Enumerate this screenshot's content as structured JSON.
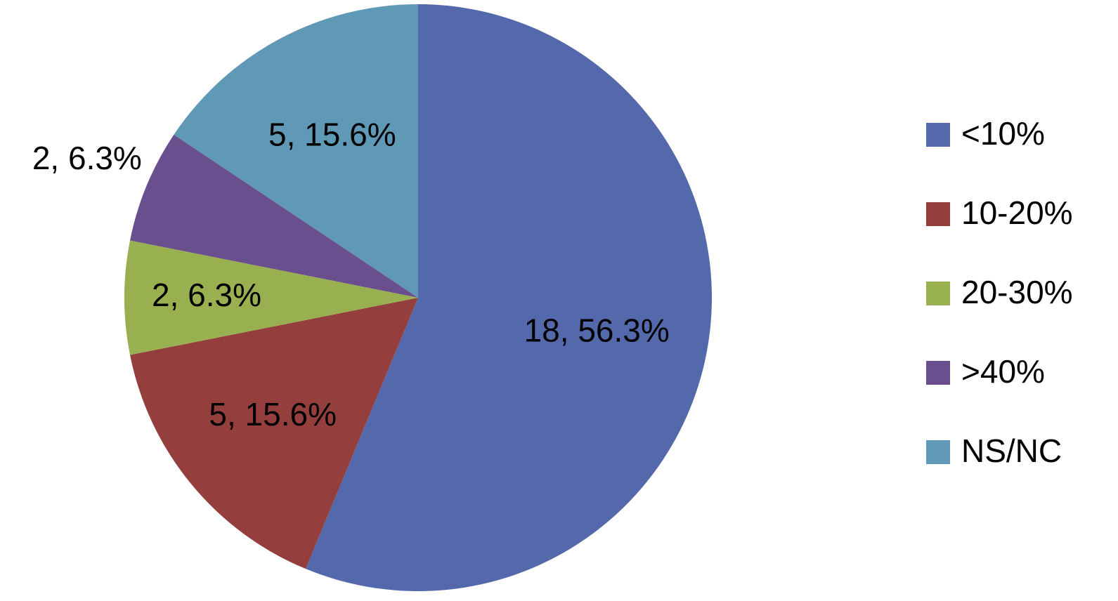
{
  "chart_data": {
    "type": "pie",
    "categories": [
      "<10%",
      "10-20%",
      "20-30%",
      ">40%",
      "NS/NC"
    ],
    "values": [
      18,
      5,
      2,
      2,
      5
    ],
    "value_labels": [
      "18, 56.3%",
      "5, 15.6%",
      "2, 6.3%",
      "2, 6.3%",
      "5, 15.6%"
    ],
    "colors": [
      "#5469ab",
      "#943f3e",
      "#98b04f",
      "#6a4f8f",
      "#6099b6"
    ],
    "legend": "right"
  }
}
